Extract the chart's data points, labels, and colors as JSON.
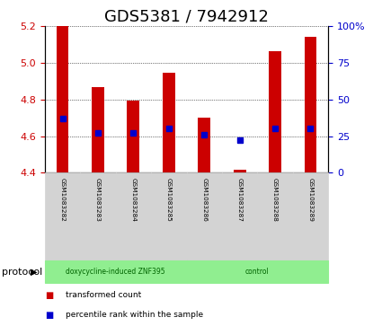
{
  "title": "GDS5381 / 7942912",
  "samples": [
    "GSM1083282",
    "GSM1083283",
    "GSM1083284",
    "GSM1083285",
    "GSM1083286",
    "GSM1083287",
    "GSM1083288",
    "GSM1083289"
  ],
  "bar_bottom": 4.4,
  "bar_tops": [
    5.2,
    4.865,
    4.795,
    4.945,
    4.7,
    4.415,
    5.065,
    5.14
  ],
  "percentile_vals": [
    37,
    27,
    27,
    30,
    26,
    22,
    30,
    30
  ],
  "ylim_left": [
    4.4,
    5.2
  ],
  "ylim_right": [
    0,
    100
  ],
  "yticks_left": [
    4.4,
    4.6,
    4.8,
    5.0,
    5.2
  ],
  "yticks_right": [
    0,
    25,
    50,
    75,
    100
  ],
  "bar_color": "#cc0000",
  "dot_color": "#0000cc",
  "bar_width": 0.35,
  "group_labels": [
    "doxycycline-induced ZNF395",
    "control"
  ],
  "group_ranges": [
    [
      0,
      4
    ],
    [
      4,
      8
    ]
  ],
  "protocol_label": "protocol",
  "legend_items": [
    {
      "color": "#cc0000",
      "label": "transformed count"
    },
    {
      "color": "#0000cc",
      "label": "percentile rank within the sample"
    }
  ],
  "grid_color": "#000000",
  "bg_plot": "#ffffff",
  "bg_xtick": "#d3d3d3",
  "bg_group_bar": "#90ee90",
  "left_label_color": "#cc0000",
  "right_label_color": "#0000cc",
  "title_fontsize": 13,
  "tick_fontsize": 8,
  "label_fontsize": 7.5
}
